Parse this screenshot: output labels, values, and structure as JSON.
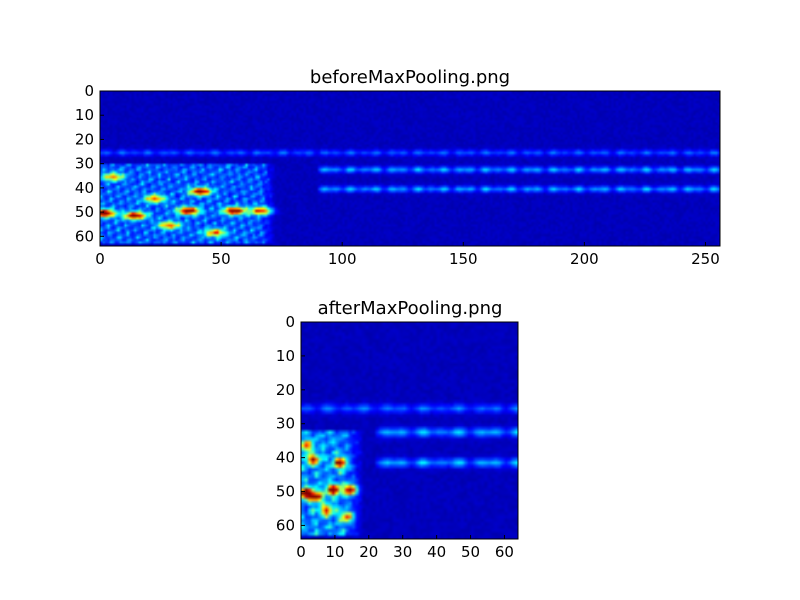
{
  "colors": {
    "background": "#ffffff",
    "colormap": "jet",
    "axis": "#000000"
  },
  "chart_data": [
    {
      "type": "heatmap",
      "title": "beforeMaxPooling.png",
      "xlabel": "",
      "ylabel": "",
      "width": 256,
      "height": 64,
      "xlim": [
        0,
        256
      ],
      "ylim": [
        64,
        0
      ],
      "xticks": [
        0,
        50,
        100,
        150,
        200,
        250
      ],
      "yticks": [
        0,
        10,
        20,
        30,
        40,
        50,
        60
      ],
      "grid": false,
      "colormap": "jet",
      "value_range": [
        0,
        1
      ],
      "background_level": 0.06,
      "features": [
        {
          "kind": "band",
          "row": 25,
          "x_from": 0,
          "x_to": 256,
          "level": 0.2
        },
        {
          "kind": "band",
          "row": 32,
          "x_from": 90,
          "x_to": 256,
          "level": 0.3
        },
        {
          "kind": "band",
          "row": 40,
          "x_from": 90,
          "x_to": 256,
          "level": 0.3
        },
        {
          "kind": "region",
          "x_from": 0,
          "x_to": 72,
          "y_from": 30,
          "y_to": 62,
          "level": 0.35
        },
        {
          "kind": "peak",
          "x": 1,
          "y": 50,
          "level": 1.0
        },
        {
          "kind": "peak",
          "x": 14,
          "y": 51,
          "level": 0.85
        },
        {
          "kind": "peak",
          "x": 36,
          "y": 49,
          "level": 0.9
        },
        {
          "kind": "peak",
          "x": 41,
          "y": 41,
          "level": 0.85
        },
        {
          "kind": "peak",
          "x": 55,
          "y": 49,
          "level": 0.9
        },
        {
          "kind": "peak",
          "x": 66,
          "y": 49,
          "level": 0.7
        },
        {
          "kind": "peak",
          "x": 22,
          "y": 44,
          "level": 0.6
        },
        {
          "kind": "peak",
          "x": 28,
          "y": 55,
          "level": 0.6
        },
        {
          "kind": "peak",
          "x": 47,
          "y": 58,
          "level": 0.6
        },
        {
          "kind": "peak",
          "x": 5,
          "y": 35,
          "level": 0.55
        }
      ]
    },
    {
      "type": "heatmap",
      "title": "afterMaxPooling.png",
      "xlabel": "",
      "ylabel": "",
      "width": 64,
      "height": 64,
      "xlim": [
        0,
        64
      ],
      "ylim": [
        64,
        0
      ],
      "xticks": [
        0,
        10,
        20,
        30,
        40,
        50,
        60
      ],
      "yticks": [
        0,
        10,
        20,
        30,
        40,
        50,
        60
      ],
      "grid": false,
      "colormap": "jet",
      "value_range": [
        0,
        1
      ],
      "background_level": 0.06,
      "features": [
        {
          "kind": "band",
          "row": 25,
          "x_from": 0,
          "x_to": 64,
          "level": 0.22
        },
        {
          "kind": "band",
          "row": 32,
          "x_from": 22,
          "x_to": 64,
          "level": 0.32
        },
        {
          "kind": "band",
          "row": 41,
          "x_from": 22,
          "x_to": 64,
          "level": 0.32
        },
        {
          "kind": "region",
          "x_from": 0,
          "x_to": 18,
          "y_from": 32,
          "y_to": 62,
          "level": 0.45
        },
        {
          "kind": "peak",
          "x": 1,
          "y": 50,
          "level": 1.0
        },
        {
          "kind": "peak",
          "x": 9,
          "y": 49,
          "level": 0.95
        },
        {
          "kind": "peak",
          "x": 14,
          "y": 49,
          "level": 0.9
        },
        {
          "kind": "peak",
          "x": 4,
          "y": 51,
          "level": 0.75
        },
        {
          "kind": "peak",
          "x": 11,
          "y": 41,
          "level": 0.8
        },
        {
          "kind": "peak",
          "x": 3,
          "y": 40,
          "level": 0.7
        },
        {
          "kind": "peak",
          "x": 7,
          "y": 55,
          "level": 0.65
        },
        {
          "kind": "peak",
          "x": 13,
          "y": 57,
          "level": 0.6
        },
        {
          "kind": "peak",
          "x": 1,
          "y": 36,
          "level": 0.55
        }
      ]
    }
  ]
}
